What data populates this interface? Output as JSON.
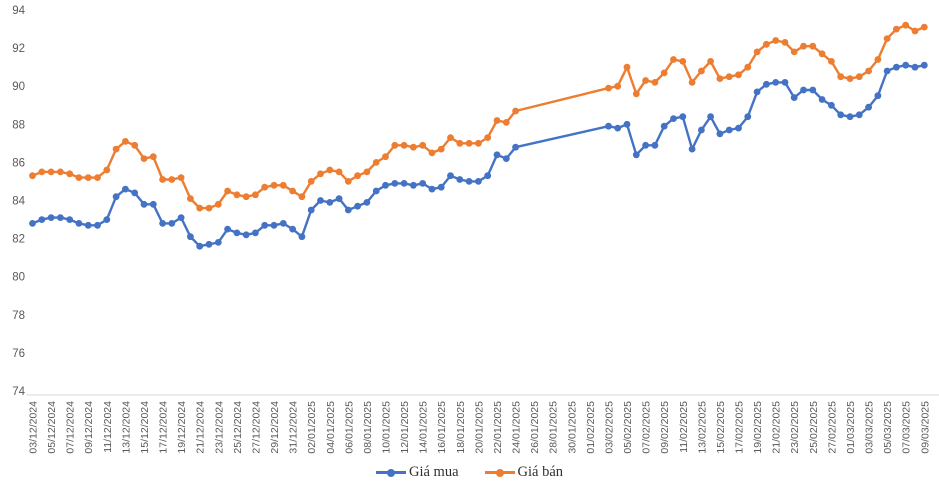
{
  "chart_data": {
    "type": "line",
    "title": "",
    "grid": false,
    "legend_position": "bottom",
    "ylim": [
      74,
      94
    ],
    "yticks": [
      74,
      76,
      78,
      80,
      82,
      84,
      86,
      88,
      90,
      92,
      94
    ],
    "x_labels_every": 2,
    "axis_label_color": "#595959",
    "axis_line_color": "#d9d9d9",
    "categories": [
      "03/12/2024",
      "04/12/2024",
      "05/12/2024",
      "06/12/2024",
      "07/12/2024",
      "08/12/2024",
      "09/12/2024",
      "10/12/2024",
      "11/12/2024",
      "12/12/2024",
      "13/12/2024",
      "14/12/2024",
      "15/12/2024",
      "16/12/2024",
      "17/12/2024",
      "18/12/2024",
      "19/12/2024",
      "20/12/2024",
      "21/12/2024",
      "22/12/2024",
      "23/12/2024",
      "24/12/2024",
      "25/12/2024",
      "26/12/2024",
      "27/12/2024",
      "28/12/2024",
      "29/12/2024",
      "30/12/2024",
      "31/12/2024",
      "01/01/2025",
      "02/01/2025",
      "03/01/2025",
      "04/01/2025",
      "05/01/2025",
      "06/01/2025",
      "07/01/2025",
      "08/01/2025",
      "09/01/2025",
      "10/01/2025",
      "11/01/2025",
      "12/01/2025",
      "13/01/2025",
      "14/01/2025",
      "15/01/2025",
      "16/01/2025",
      "17/01/2025",
      "18/01/2025",
      "19/01/2025",
      "20/01/2025",
      "21/01/2025",
      "22/01/2025",
      "23/01/2025",
      "24/01/2025",
      "25/01/2025",
      "26/01/2025",
      "27/01/2025",
      "28/01/2025",
      "29/01/2025",
      "30/01/2025",
      "31/01/2025",
      "01/02/2025",
      "02/02/2025",
      "03/02/2025",
      "04/02/2025",
      "05/02/2025",
      "06/02/2025",
      "07/02/2025",
      "08/02/2025",
      "09/02/2025",
      "10/02/2025",
      "11/02/2025",
      "12/02/2025",
      "13/02/2025",
      "14/02/2025",
      "15/02/2025",
      "16/02/2025",
      "17/02/2025",
      "18/02/2025",
      "19/02/2025",
      "20/02/2025",
      "21/02/2025",
      "22/02/2025",
      "23/02/2025",
      "24/02/2025",
      "25/02/2025",
      "26/02/2025",
      "27/02/2025",
      "28/02/2025",
      "01/03/2025",
      "02/03/2025",
      "03/03/2025",
      "04/03/2025",
      "05/03/2025",
      "06/03/2025",
      "07/03/2025",
      "08/03/2025",
      "09/03/2025"
    ],
    "series": [
      {
        "name": "Giá mua",
        "color": "#4472C4",
        "values": [
          82.8,
          83.0,
          83.1,
          83.1,
          83.0,
          82.8,
          82.7,
          82.7,
          83.0,
          84.2,
          84.6,
          84.4,
          83.8,
          83.8,
          82.8,
          82.8,
          83.1,
          82.1,
          81.6,
          81.7,
          81.8,
          82.5,
          82.3,
          82.2,
          82.3,
          82.7,
          82.7,
          82.8,
          82.5,
          82.1,
          83.5,
          84.0,
          83.9,
          84.1,
          83.5,
          83.7,
          83.9,
          84.5,
          84.8,
          84.9,
          84.9,
          84.8,
          84.9,
          84.6,
          84.7,
          85.3,
          85.1,
          85.0,
          85.0,
          85.3,
          86.4,
          86.2,
          86.8,
          null,
          null,
          null,
          null,
          null,
          null,
          null,
          null,
          null,
          87.9,
          87.8,
          88.0,
          86.4,
          86.9,
          86.9,
          87.9,
          88.3,
          88.4,
          86.7,
          87.7,
          88.4,
          87.5,
          87.7,
          87.8,
          88.4,
          89.7,
          90.1,
          90.2,
          90.2,
          89.4,
          89.8,
          89.8,
          89.3,
          89.0,
          88.5,
          88.4,
          88.5,
          88.9,
          89.5,
          90.8,
          91.0,
          91.1,
          91.0,
          91.1
        ]
      },
      {
        "name": "Giá bán",
        "color": "#ED7D31",
        "values": [
          85.3,
          85.5,
          85.5,
          85.5,
          85.4,
          85.2,
          85.2,
          85.2,
          85.6,
          86.7,
          87.1,
          86.9,
          86.2,
          86.3,
          85.1,
          85.1,
          85.2,
          84.1,
          83.6,
          83.6,
          83.8,
          84.5,
          84.3,
          84.2,
          84.3,
          84.7,
          84.8,
          84.8,
          84.5,
          84.2,
          85.0,
          85.4,
          85.6,
          85.5,
          85.0,
          85.3,
          85.5,
          86.0,
          86.3,
          86.9,
          86.9,
          86.8,
          86.9,
          86.5,
          86.7,
          87.3,
          87.0,
          87.0,
          87.0,
          87.3,
          88.2,
          88.1,
          88.7,
          null,
          null,
          null,
          null,
          null,
          null,
          null,
          null,
          null,
          89.9,
          90.0,
          91.0,
          89.6,
          90.3,
          90.2,
          90.7,
          91.4,
          91.3,
          90.2,
          90.8,
          91.3,
          90.4,
          90.5,
          90.6,
          91.0,
          91.8,
          92.2,
          92.4,
          92.3,
          91.8,
          92.1,
          92.1,
          91.7,
          91.3,
          90.5,
          90.4,
          90.5,
          90.8,
          91.4,
          92.5,
          93.0,
          93.2,
          92.9,
          93.1
        ]
      }
    ]
  }
}
